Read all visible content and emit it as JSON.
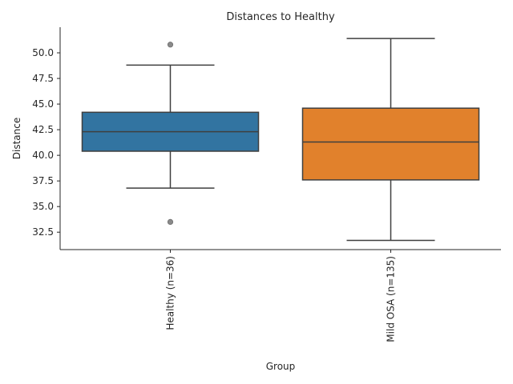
{
  "chart_data": {
    "type": "box",
    "title": "Distances to Healthy",
    "xlabel": "Group",
    "ylabel": "Distance",
    "ylim": [
      30.8,
      52.5
    ],
    "yticks": [
      "32.5",
      "35.0",
      "37.5",
      "40.0",
      "42.5",
      "45.0",
      "47.5",
      "50.0"
    ],
    "grid": false,
    "categories": [
      "Healthy (n=36)",
      "Mild OSA (n=135)"
    ],
    "boxes": [
      {
        "category": "Healthy (n=36)",
        "color": "#3274a1",
        "whisker_low": 36.8,
        "q1": 40.4,
        "median": 42.3,
        "q3": 44.2,
        "whisker_high": 48.8,
        "outliers": [
          50.8,
          33.5
        ]
      },
      {
        "category": "Mild OSA (n=135)",
        "color": "#e1812c",
        "whisker_low": 31.7,
        "q1": 37.6,
        "median": 41.3,
        "q3": 44.6,
        "whisker_high": 51.4,
        "outliers": []
      }
    ]
  }
}
